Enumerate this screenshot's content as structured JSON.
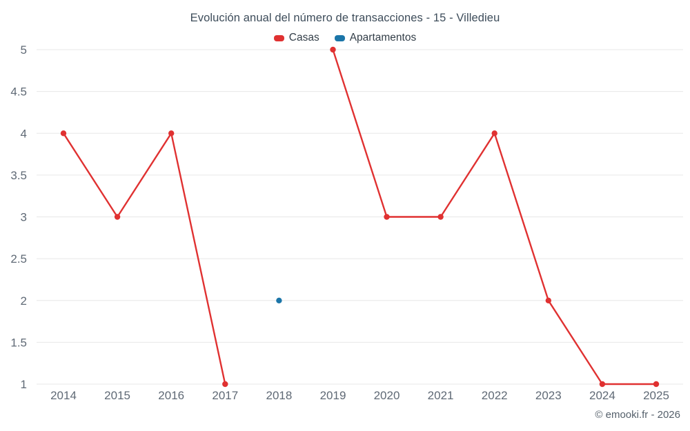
{
  "title": "Evolución anual del número de transacciones - 15 - Villedieu",
  "legend": [
    {
      "label": "Casas",
      "color": "#e03131"
    },
    {
      "label": "Apartamentos",
      "color": "#1b75a8"
    }
  ],
  "footer": {
    "copyright": "© emooki.fr - 2026"
  },
  "chart_data": {
    "type": "line",
    "title": "Evolución anual del número de transacciones - 15 - Villedieu",
    "x": [
      "2014",
      "2015",
      "2016",
      "2017",
      "2018",
      "2019",
      "2020",
      "2021",
      "2022",
      "2023",
      "2024",
      "2025"
    ],
    "series": [
      {
        "name": "Casas",
        "color": "#e03131",
        "marker": "circle",
        "values": [
          4,
          3,
          4,
          1,
          null,
          5,
          3,
          3,
          4,
          2,
          1,
          1
        ]
      },
      {
        "name": "Apartamentos",
        "color": "#1b75a8",
        "marker": "circle",
        "values": [
          null,
          null,
          null,
          null,
          2,
          null,
          null,
          null,
          null,
          null,
          null,
          null
        ]
      }
    ],
    "xlabel": "",
    "ylabel": "",
    "ylim": [
      1,
      5
    ],
    "yticks": [
      1,
      1.5,
      2,
      2.5,
      3,
      3.5,
      4,
      4.5,
      5
    ],
    "grid": true,
    "gridline_color": "#e7e7e7",
    "legend_position": "top"
  }
}
